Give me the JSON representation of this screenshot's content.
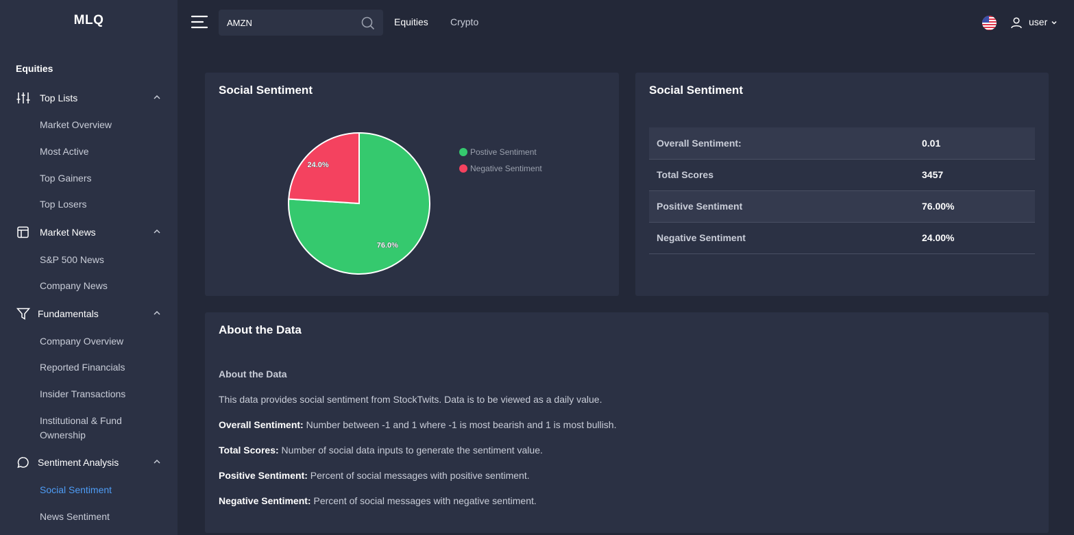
{
  "app": {
    "logo": "MLQ"
  },
  "sidebar": {
    "section": "Equities",
    "groups": [
      {
        "label": "Top Lists",
        "icon": "sliders-icon",
        "items": [
          "Market Overview",
          "Most Active",
          "Top Gainers",
          "Top Losers"
        ]
      },
      {
        "label": "Market News",
        "icon": "news-icon",
        "items": [
          "S&P 500 News",
          "Company News"
        ]
      },
      {
        "label": "Fundamentals",
        "icon": "filter-icon",
        "items": [
          "Company Overview",
          "Reported Financials",
          "Insider Transactions",
          "Institutional & Fund Ownership"
        ]
      },
      {
        "label": "Sentiment Analysis",
        "icon": "chat-icon",
        "items": [
          "Social Sentiment",
          "News Sentiment"
        ]
      }
    ],
    "active_item": "Social Sentiment"
  },
  "header": {
    "search_value": "AMZN",
    "nav": [
      "Equities",
      "Crypto"
    ],
    "user_label": "user",
    "flag_icon": "us-flag-icon"
  },
  "pie_card": {
    "title": "Social Sentiment",
    "chart_data": {
      "type": "pie",
      "slices": [
        {
          "name": "Postive Sentiment",
          "value": 76.0,
          "label": "76.0%",
          "color": "#35c96e"
        },
        {
          "name": "Negative Sentiment",
          "value": 24.0,
          "label": "24.0%",
          "color": "#f4425f"
        }
      ],
      "legend_position": "top-right"
    }
  },
  "stats_card": {
    "title": "Social Sentiment",
    "rows": [
      {
        "label": "Overall Sentiment:",
        "value": "0.01"
      },
      {
        "label": "Total Scores",
        "value": "3457"
      },
      {
        "label": "Positive Sentiment",
        "value": "76.00%"
      },
      {
        "label": "Negative Sentiment",
        "value": "24.00%"
      }
    ]
  },
  "about": {
    "title": "About the Data",
    "subtitle": "About the Data",
    "intro": "This data provides social sentiment from StockTwits. Data is to be viewed as a daily value.",
    "definitions": [
      {
        "term": "Overall Sentiment:",
        "text": " Number between -1 and 1 where -1 is most bearish and 1 is most bullish."
      },
      {
        "term": "Total Scores:",
        "text": " Number of social data inputs to generate the sentiment value."
      },
      {
        "term": "Positive Sentiment:",
        "text": " Percent of social messages with positive sentiment."
      },
      {
        "term": "Negative Sentiment:",
        "text": " Percent of social messages with negative sentiment."
      }
    ]
  },
  "colors": {
    "background": "#232838",
    "panel": "#2b3144",
    "accent": "#4e9cf5",
    "positive": "#35c96e",
    "negative": "#f4425f"
  }
}
